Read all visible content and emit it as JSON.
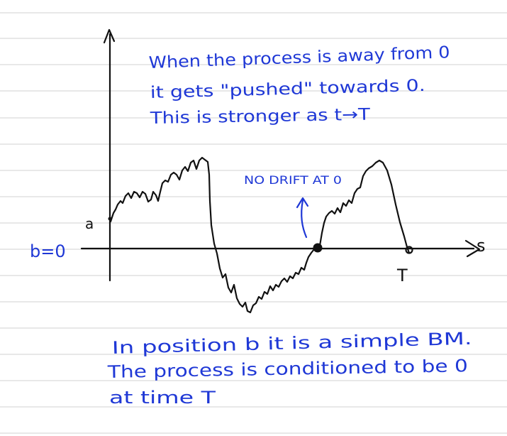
{
  "notes": {
    "top_line1": "When the process is away from 0",
    "top_line2": "it gets \"pushed\" towards 0.",
    "top_line3": "This is stronger as t→T",
    "no_drift": "NO DRIFT AT 0",
    "bottom_line1": "In position b it is a simple BM.",
    "bottom_line2": "The process is conditioned to be 0",
    "bottom_line3": "at time T"
  },
  "axes": {
    "y_level_label": "b=0",
    "start_marker": "a",
    "x_axis_label": "s",
    "end_time_label": "T"
  },
  "colors": {
    "ink_blue": "#1f38d6",
    "ink_black": "#111111",
    "rule_lines": "#d9d9d9"
  }
}
